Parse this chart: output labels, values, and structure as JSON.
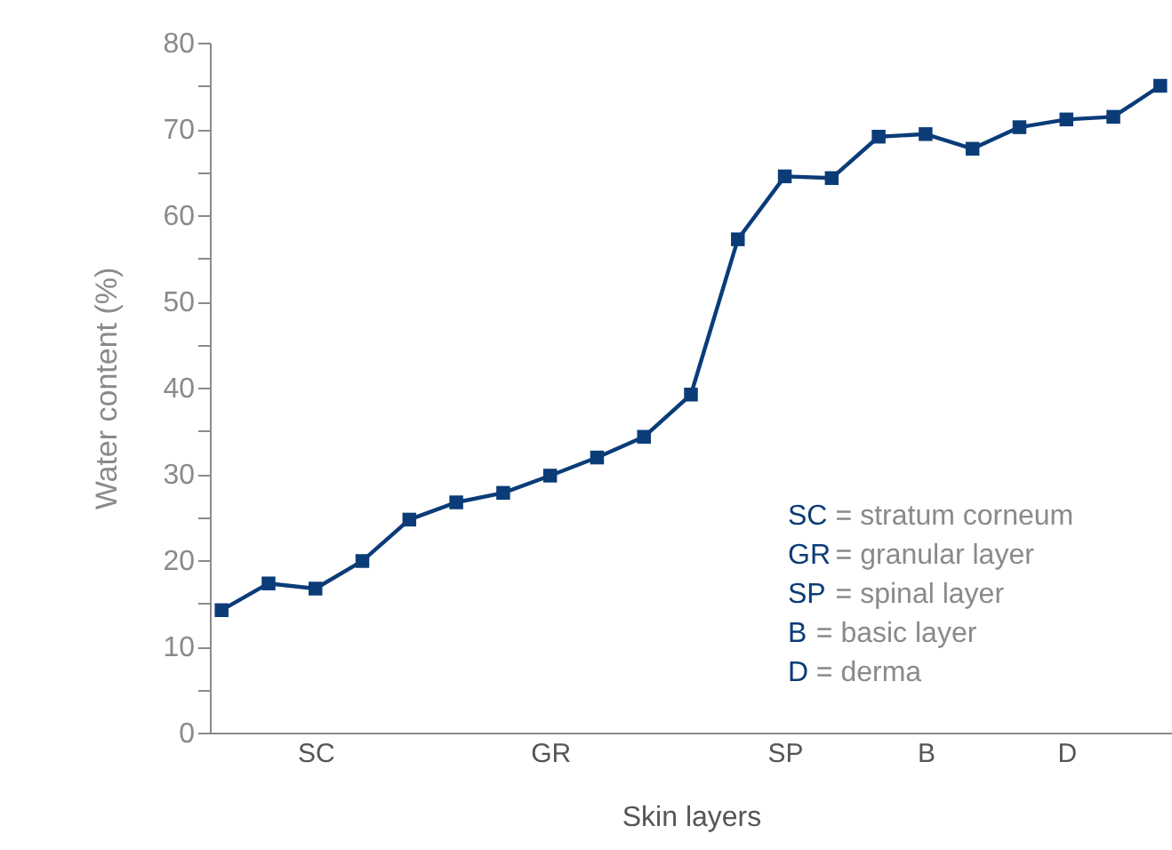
{
  "chart_data": {
    "type": "line",
    "xlabel": "Skin layers",
    "ylabel": "Water content (%)",
    "categories": [
      null,
      null,
      "SC",
      null,
      null,
      null,
      null,
      "GR",
      null,
      null,
      null,
      null,
      "SP",
      null,
      null,
      "B",
      null,
      null,
      "D",
      null,
      null
    ],
    "series": [
      {
        "color": "#0b3c78",
        "values": [
          14.2,
          17.3,
          16.7,
          19.9,
          24.7,
          26.7,
          27.8,
          29.8,
          31.9,
          34.3,
          39.2,
          57.2,
          64.5,
          64.3,
          69.1,
          69.4,
          67.7,
          70.2,
          71.1,
          71.4,
          75
        ]
      }
    ],
    "ylim": [
      0,
      80
    ],
    "yticks": [
      0,
      {
        "value": 5,
        "label": null
      },
      10,
      {
        "value": 15,
        "label": null
      },
      20,
      {
        "value": 25,
        "label": null
      },
      30,
      {
        "value": 35,
        "label": null
      },
      40,
      {
        "value": 45,
        "label": null
      },
      50,
      {
        "value": 55,
        "label": null
      },
      60,
      {
        "value": 65,
        "label": null
      },
      70,
      {
        "value": 75,
        "label": null
      },
      80
    ],
    "annotations": [
      "SC = stratum corneum",
      "GR = granular layer",
      "SP = spinal layer",
      "B = basic layer",
      "D = derma"
    ],
    "marker": "square",
    "line_style": "solid",
    "grid": false,
    "legend": false
  }
}
